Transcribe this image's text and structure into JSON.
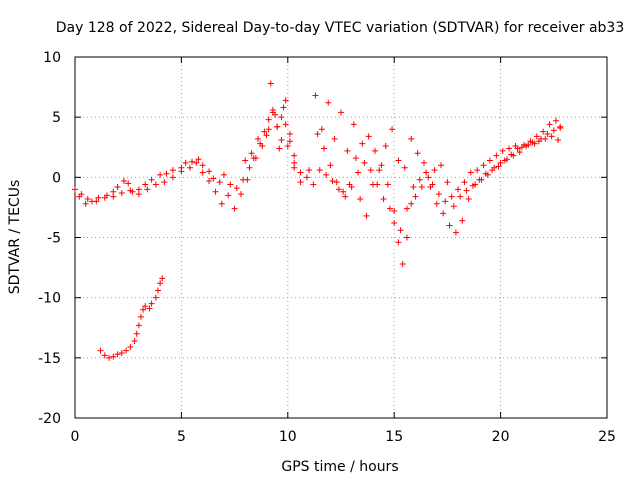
{
  "chart_data": {
    "type": "scatter",
    "title": "Day 128 of 2022, Sidereal Day-to-day VTEC variation (SDTVAR) for receiver ab33",
    "xlabel": "GPS time / hours",
    "ylabel": "SDTVAR / TECUs",
    "xlim": [
      0,
      25
    ],
    "ylim": [
      -20,
      10
    ],
    "x_ticks": [
      0,
      5,
      10,
      15,
      20,
      25
    ],
    "y_ticks": [
      -20,
      -15,
      -10,
      -5,
      0,
      5,
      10
    ],
    "x_tick_labels": [
      "0",
      "5",
      "10",
      "15",
      "20",
      "25"
    ],
    "y_tick_labels": [
      "-20",
      "-15",
      "-10",
      "-5",
      "0",
      "5",
      "10"
    ],
    "grid": true,
    "marker": "+",
    "color": "#ff0000",
    "series": [
      {
        "name": "trace-1",
        "x": [
          0.0,
          0.2,
          0.5,
          0.8,
          1.1,
          1.5,
          1.8,
          2.0,
          2.3,
          2.5,
          2.7,
          3.0,
          3.3,
          3.6,
          4.0,
          4.3,
          4.6,
          5.0,
          5.2,
          5.5,
          5.8,
          6.0,
          6.3,
          6.5,
          6.8,
          7.0,
          7.3,
          7.6,
          7.9,
          8.2,
          8.5,
          8.8,
          9.1,
          9.3,
          9.5,
          9.7,
          9.9,
          10.1,
          10.3,
          10.6,
          10.9,
          11.2,
          11.5,
          11.8,
          12.1,
          12.4,
          12.7,
          13.0,
          13.3,
          13.6,
          13.9,
          14.2,
          14.5,
          14.8,
          15.0,
          15.2,
          15.4,
          15.6,
          15.8,
          16.0,
          16.3,
          16.6,
          16.9,
          17.2,
          17.5,
          17.8,
          18.1,
          18.4,
          18.7,
          19.0,
          19.3,
          19.6,
          19.9,
          20.2,
          20.5,
          20.8,
          21.1,
          21.4,
          21.7,
          22.0,
          22.3,
          22.6,
          22.8
        ],
        "y": [
          -1.0,
          -1.6,
          -2.2,
          -2.0,
          -1.7,
          -1.5,
          -1.2,
          -0.8,
          -0.3,
          -0.5,
          -1.2,
          -1.0,
          -0.6,
          -0.2,
          0.2,
          0.3,
          0.6,
          0.8,
          1.2,
          1.3,
          1.5,
          1.0,
          0.5,
          -0.1,
          -0.4,
          0.2,
          -0.6,
          -0.9,
          -0.2,
          0.8,
          1.6,
          2.6,
          4.0,
          5.4,
          4.2,
          3.1,
          4.4,
          3.0,
          0.8,
          0.4,
          0.0,
          -0.6,
          0.6,
          0.2,
          -0.3,
          -1.0,
          -1.6,
          -0.8,
          0.4,
          1.2,
          0.6,
          -0.6,
          -1.8,
          -2.6,
          -3.8,
          -5.4,
          -7.2,
          -5.0,
          -2.2,
          -1.6,
          -0.8,
          0.0,
          0.6,
          1.0,
          -0.4,
          -2.4,
          -1.6,
          -1.1,
          -0.7,
          -0.2,
          0.3,
          0.6,
          0.9,
          1.4,
          1.9,
          2.4,
          2.7,
          3.0,
          3.4,
          3.8,
          4.4,
          4.7,
          4.2
        ]
      },
      {
        "name": "trace-2",
        "x": [
          0.3,
          0.6,
          1.0,
          1.4,
          1.8,
          2.2,
          2.6,
          3.0,
          3.4,
          3.8,
          4.2,
          4.6,
          5.0,
          5.4,
          5.7,
          6.0,
          6.3,
          6.6,
          6.9,
          7.2,
          7.5,
          7.8,
          8.1,
          8.4,
          8.7,
          9.0,
          9.2,
          9.4,
          9.6,
          9.8,
          10.0,
          10.3,
          10.6,
          11.0,
          11.3,
          11.6,
          11.9,
          12.2,
          12.5,
          12.8,
          13.1,
          13.4,
          13.7,
          14.0,
          14.3,
          14.6,
          14.9,
          15.2,
          15.5,
          15.8,
          16.1,
          16.4,
          16.7,
          17.0,
          17.3,
          17.6,
          17.9,
          18.2,
          18.5,
          18.8,
          19.1,
          19.4,
          19.7,
          20.0,
          20.3,
          20.6,
          20.9,
          21.2,
          21.5,
          21.8,
          22.1,
          22.4,
          22.7
        ],
        "y": [
          -1.4,
          -1.8,
          -2.0,
          -1.7,
          -1.6,
          -1.3,
          -1.1,
          -1.4,
          -1.0,
          -0.6,
          -0.4,
          0.0,
          0.5,
          0.8,
          1.2,
          0.4,
          -0.3,
          -1.2,
          -2.2,
          -1.5,
          -2.6,
          -1.4,
          -0.2,
          1.6,
          2.8,
          3.5,
          7.8,
          5.2,
          2.4,
          5.8,
          2.6,
          1.8,
          -0.4,
          0.6,
          6.8,
          4.0,
          6.2,
          3.2,
          5.4,
          2.2,
          4.4,
          -1.8,
          -3.2,
          -0.6,
          0.6,
          2.6,
          4.0,
          1.4,
          0.8,
          3.2,
          2.0,
          1.2,
          -0.8,
          -2.2,
          -3.0,
          -4.0,
          -4.6,
          -3.6,
          -1.8,
          -0.6,
          -0.2,
          0.2,
          0.8,
          1.2,
          1.5,
          1.8,
          2.1,
          2.6,
          2.9,
          3.0,
          3.2,
          3.4,
          3.1
        ]
      },
      {
        "name": "trace-3",
        "x": [
          8.0,
          8.3,
          8.6,
          8.9,
          9.1,
          9.3,
          9.5,
          9.7,
          9.9,
          10.1,
          10.3,
          11.4,
          11.7,
          12.0,
          12.3,
          12.6,
          12.9,
          13.2,
          13.5,
          13.8,
          14.1,
          14.4,
          14.7,
          15.0,
          15.3,
          15.6,
          15.9,
          16.2,
          16.5,
          16.8,
          17.1,
          17.4,
          17.7,
          18.0,
          18.3,
          18.6,
          18.9,
          19.2,
          19.5,
          19.8,
          20.1,
          20.4,
          20.7,
          21.0,
          21.3,
          21.6,
          21.9,
          22.2,
          22.5,
          22.8
        ],
        "y": [
          1.4,
          2.0,
          3.2,
          3.8,
          4.8,
          5.6,
          4.2,
          5.0,
          6.4,
          3.6,
          1.2,
          3.6,
          2.4,
          1.0,
          -0.4,
          -1.2,
          -0.6,
          1.6,
          2.8,
          3.4,
          2.2,
          1.0,
          -0.6,
          -2.8,
          -4.4,
          -2.6,
          -0.8,
          -0.2,
          0.4,
          -0.6,
          -1.4,
          -2.0,
          -1.6,
          -1.0,
          -0.4,
          0.4,
          0.6,
          1.0,
          1.4,
          1.8,
          2.2,
          2.4,
          2.6,
          2.5,
          2.7,
          2.8,
          3.2,
          3.6,
          3.9,
          4.1
        ]
      },
      {
        "name": "trace-4",
        "x": [
          1.2,
          1.4,
          1.6,
          1.8,
          2.0,
          2.2,
          2.4,
          2.6,
          2.8,
          2.9,
          3.0,
          3.1,
          3.2,
          3.3,
          3.5,
          3.6,
          3.8,
          3.9,
          4.0,
          4.1
        ],
        "y": [
          -14.4,
          -14.8,
          -15.0,
          -14.9,
          -14.7,
          -14.6,
          -14.4,
          -14.1,
          -13.6,
          -13.0,
          -12.3,
          -11.6,
          -11.0,
          -10.7,
          -10.9,
          -10.5,
          -10.0,
          -9.4,
          -8.8,
          -8.4
        ]
      }
    ]
  }
}
